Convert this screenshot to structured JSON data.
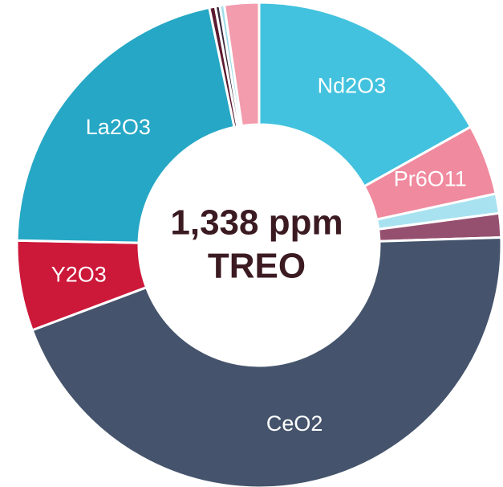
{
  "chart_data": {
    "type": "donut",
    "title": "1,338 ppm",
    "subtitle": "TREO",
    "categories": [
      "Nd2O3",
      "Pr6O11",
      null,
      null,
      "CeO2",
      "Y2O3",
      "La2O3",
      null,
      null,
      null,
      null
    ],
    "values": [
      16.9,
      4.7,
      1.3,
      1.6,
      44.8,
      6.0,
      21.4,
      0.4,
      0.3,
      0.3,
      2.3
    ],
    "colors": [
      "#42c2de",
      "#f08a9f",
      "#a8e2f0",
      "#96506f",
      "#45546c",
      "#cc1839",
      "#25a7c5",
      "#5a1a30",
      "#3b2a3c",
      "#9fdcea",
      "#f39cad"
    ]
  }
}
